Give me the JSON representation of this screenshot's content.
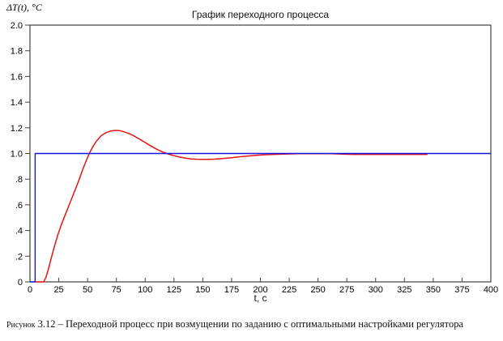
{
  "chart_data": {
    "type": "line",
    "title": "График переходного процесса",
    "xlabel": "t, c",
    "ylabel": "ΔT(t), °C",
    "xlim": [
      0,
      400
    ],
    "ylim": [
      0,
      2
    ],
    "grid": false,
    "legend": "none",
    "frame_color": "#404040",
    "background": "#ffffff",
    "xticks": [
      {
        "v": 0,
        "label": "0"
      },
      {
        "v": 25,
        "label": "25"
      },
      {
        "v": 50,
        "label": "50"
      },
      {
        "v": 75,
        "label": "75"
      },
      {
        "v": 100,
        "label": "100"
      },
      {
        "v": 125,
        "label": "125"
      },
      {
        "v": 150,
        "label": "150"
      },
      {
        "v": 175,
        "label": "175"
      },
      {
        "v": 200,
        "label": "200"
      },
      {
        "v": 225,
        "label": "225"
      },
      {
        "v": 250,
        "label": "250"
      },
      {
        "v": 275,
        "label": "275"
      },
      {
        "v": 300,
        "label": "300"
      },
      {
        "v": 325,
        "label": "325"
      },
      {
        "v": 350,
        "label": "350"
      },
      {
        "v": 375,
        "label": "375"
      },
      {
        "v": 400,
        "label": "400"
      }
    ],
    "yticks": [
      {
        "v": 0,
        "label": "0"
      },
      {
        "v": 0.2,
        "label": ".2"
      },
      {
        "v": 0.4,
        "label": ".4"
      },
      {
        "v": 0.6,
        "label": ".6"
      },
      {
        "v": 0.8,
        "label": ".8"
      },
      {
        "v": 1.0,
        "label": "1.0"
      },
      {
        "v": 1.2,
        "label": "1.2"
      },
      {
        "v": 1.4,
        "label": "1.4"
      },
      {
        "v": 1.6,
        "label": "1.6"
      },
      {
        "v": 1.8,
        "label": "1.8"
      },
      {
        "v": 2.0,
        "label": "2.0"
      }
    ],
    "series": [
      {
        "name": "process-response",
        "color": "#e81414",
        "width": 1.5,
        "points": [
          [
            5,
            0
          ],
          [
            12,
            0
          ],
          [
            14,
            0.04
          ],
          [
            16,
            0.1
          ],
          [
            18,
            0.17
          ],
          [
            21,
            0.27
          ],
          [
            24,
            0.36
          ],
          [
            27,
            0.44
          ],
          [
            30,
            0.51
          ],
          [
            34,
            0.6
          ],
          [
            38,
            0.69
          ],
          [
            42,
            0.78
          ],
          [
            46,
            0.88
          ],
          [
            50,
            0.97
          ],
          [
            52,
            1.01
          ],
          [
            55,
            1.06
          ],
          [
            58,
            1.1
          ],
          [
            62,
            1.14
          ],
          [
            66,
            1.163
          ],
          [
            70,
            1.175
          ],
          [
            74,
            1.18
          ],
          [
            78,
            1.178
          ],
          [
            82,
            1.168
          ],
          [
            86,
            1.155
          ],
          [
            90,
            1.138
          ],
          [
            95,
            1.112
          ],
          [
            100,
            1.085
          ],
          [
            105,
            1.058
          ],
          [
            110,
            1.033
          ],
          [
            115,
            1.012
          ],
          [
            120,
            0.996
          ],
          [
            125,
            0.983
          ],
          [
            130,
            0.972
          ],
          [
            135,
            0.964
          ],
          [
            140,
            0.958
          ],
          [
            145,
            0.955
          ],
          [
            150,
            0.954
          ],
          [
            155,
            0.954
          ],
          [
            160,
            0.956
          ],
          [
            165,
            0.959
          ],
          [
            170,
            0.963
          ],
          [
            175,
            0.967
          ],
          [
            180,
            0.972
          ],
          [
            185,
            0.977
          ],
          [
            190,
            0.981
          ],
          [
            195,
            0.985
          ],
          [
            200,
            0.988
          ],
          [
            207,
            0.991
          ],
          [
            215,
            0.994
          ],
          [
            223,
            0.996
          ],
          [
            232,
            0.998
          ],
          [
            240,
            0.999
          ],
          [
            262,
            0.999
          ],
          [
            270,
            0.995
          ],
          [
            280,
            0.993
          ],
          [
            345,
            0.993
          ]
        ]
      },
      {
        "name": "setpoint-step",
        "color": "#1414e6",
        "width": 1.4,
        "points": [
          [
            0,
            0
          ],
          [
            4.5,
            0
          ],
          [
            4.5,
            1
          ],
          [
            400,
            1
          ]
        ]
      }
    ]
  },
  "caption": {
    "prefix": "Рисунок",
    "text": "3.12 – Переходной процесс при возмущении по заданию с оптимальными настройками регулятора"
  }
}
